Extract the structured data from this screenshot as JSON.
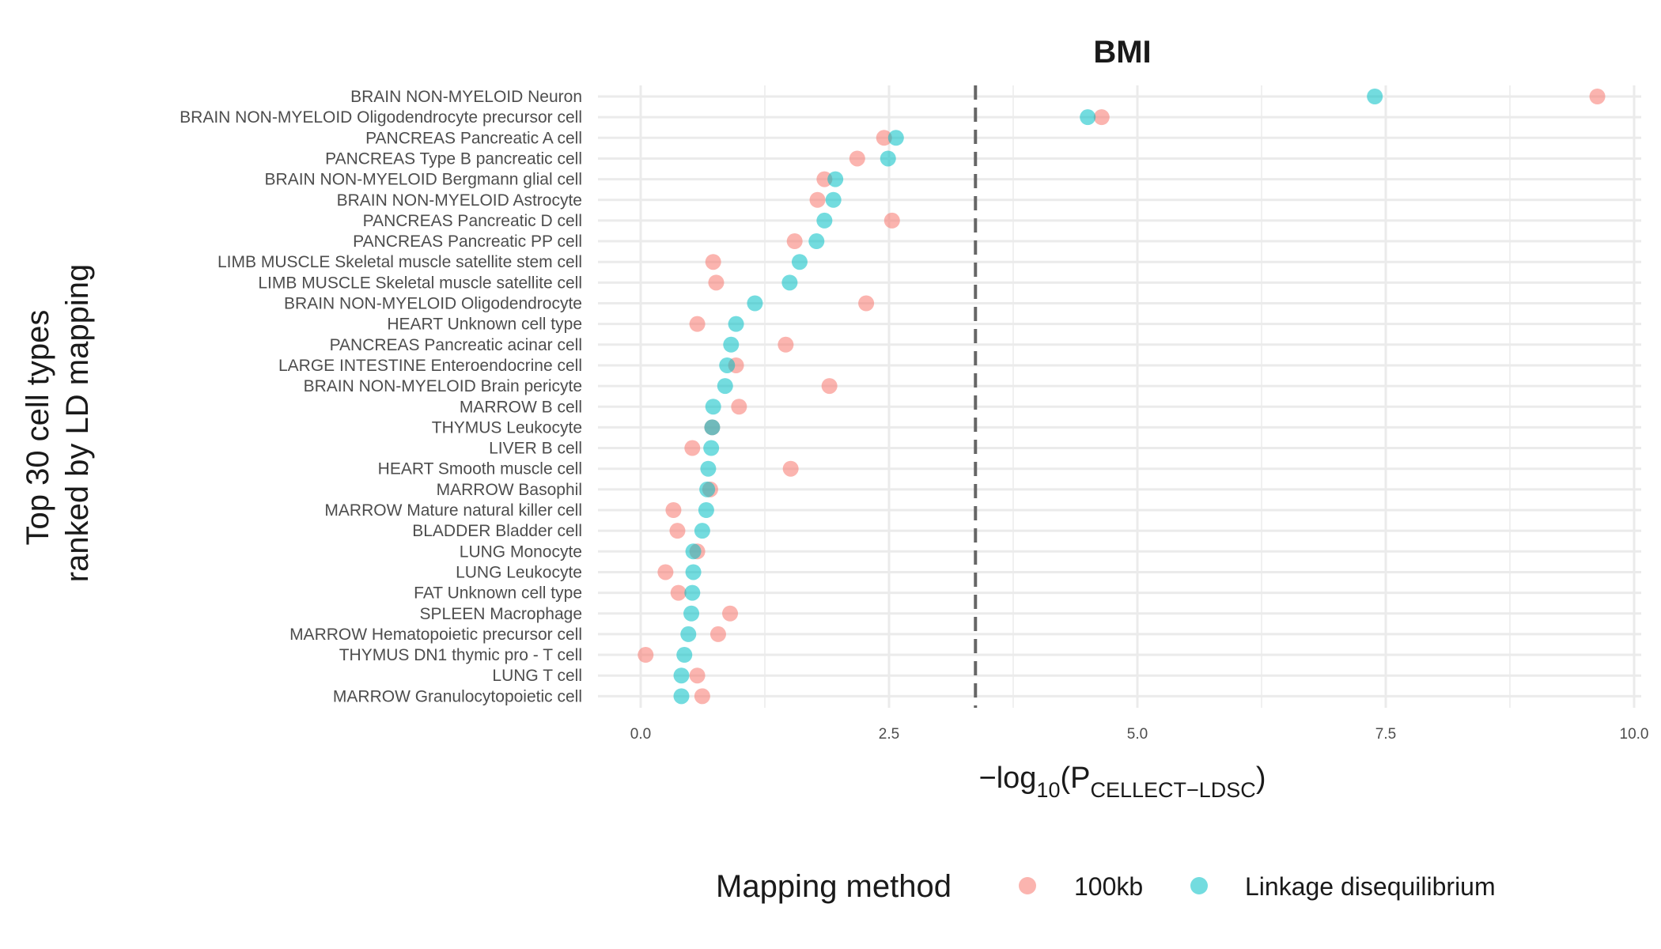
{
  "chart_data": {
    "type": "scatter",
    "title": "BMI",
    "xlabel": {
      "prefix": "−log",
      "sub1": "10",
      "mid": "(P",
      "sub2": "CELLECT−LDSC",
      "suffix": ")"
    },
    "ylabel": [
      "Top 30 cell types",
      "ranked by LD mapping"
    ],
    "xlim": [
      -0.4,
      10.1
    ],
    "xticks": [
      0,
      2.5,
      5,
      7.5,
      10
    ],
    "xtick_labels": [
      "0.0",
      "2.5",
      "5.0",
      "7.5",
      "10.0"
    ],
    "threshold": 3.37,
    "grid": true,
    "legend_position": "bottom",
    "legend_title": "Mapping method",
    "categories": [
      "BRAIN NON-MYELOID Neuron",
      "BRAIN NON-MYELOID Oligodendrocyte precursor cell",
      "PANCREAS Pancreatic A cell",
      "PANCREAS Type B pancreatic cell",
      "BRAIN NON-MYELOID Bergmann glial cell",
      "BRAIN NON-MYELOID Astrocyte",
      "PANCREAS Pancreatic D cell",
      "PANCREAS Pancreatic PP cell",
      "LIMB MUSCLE Skeletal muscle satellite stem cell",
      "LIMB MUSCLE Skeletal muscle satellite cell",
      "BRAIN NON-MYELOID Oligodendrocyte",
      "HEART Unknown cell type",
      "PANCREAS Pancreatic acinar cell",
      "LARGE INTESTINE Enteroendocrine cell",
      "BRAIN NON-MYELOID Brain pericyte",
      "MARROW B cell",
      "THYMUS Leukocyte",
      "LIVER B cell",
      "HEART Smooth muscle cell",
      "MARROW Basophil",
      "MARROW Mature natural killer cell",
      "BLADDER Bladder cell",
      "LUNG Monocyte",
      "LUNG Leukocyte",
      "FAT Unknown cell type",
      "SPLEEN Macrophage",
      "MARROW Hematopoietic precursor cell",
      "THYMUS DN1 thymic pro - T cell",
      "LUNG T cell",
      "MARROW Granulocytopoietic cell"
    ],
    "series": [
      {
        "name": "100kb",
        "color": "#F8766D",
        "values": [
          9.63,
          4.64,
          2.45,
          2.18,
          1.85,
          1.78,
          2.53,
          1.55,
          0.73,
          0.76,
          2.27,
          0.57,
          1.46,
          0.96,
          1.9,
          0.99,
          0.72,
          0.52,
          1.51,
          0.7,
          0.33,
          0.37,
          0.57,
          0.25,
          0.38,
          0.9,
          0.78,
          0.05,
          0.57,
          0.62
        ]
      },
      {
        "name": "Linkage disequilibrium",
        "color": "#00BFC4",
        "values": [
          7.39,
          4.5,
          2.57,
          2.49,
          1.96,
          1.94,
          1.85,
          1.77,
          1.6,
          1.5,
          1.15,
          0.96,
          0.91,
          0.87,
          0.85,
          0.73,
          0.72,
          0.71,
          0.68,
          0.67,
          0.66,
          0.62,
          0.53,
          0.53,
          0.52,
          0.51,
          0.48,
          0.44,
          0.41,
          0.41
        ]
      }
    ]
  }
}
